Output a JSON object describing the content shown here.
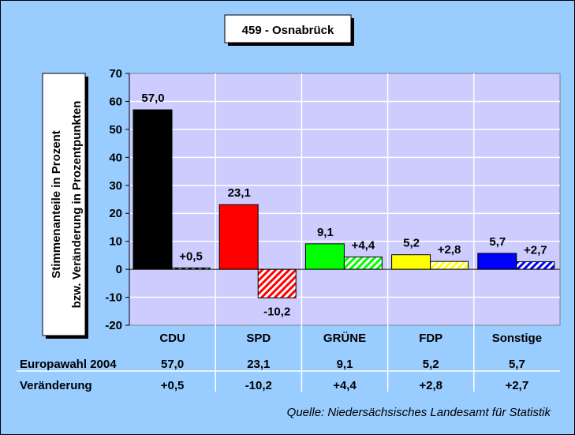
{
  "chart_data": {
    "type": "bar",
    "title": "459 - Osnabrück",
    "ylabel_lines": [
      "Stimmenanteile in Prozent",
      "bzw. Veränderung in Prozentpunkten"
    ],
    "ylim": [
      -20,
      70
    ],
    "yticks": [
      -20,
      -10,
      0,
      10,
      20,
      30,
      40,
      50,
      60,
      70
    ],
    "grid": true,
    "categories": [
      "CDU",
      "SPD",
      "GRÜNE",
      "FDP",
      "Sonstige"
    ],
    "colors": [
      "#000000",
      "#ff0000",
      "#00ff00",
      "#ffff00",
      "#0000ff"
    ],
    "series": [
      {
        "name": "Europawahl 2004",
        "values": [
          57.0,
          23.1,
          9.1,
          5.2,
          5.7
        ],
        "labels": [
          "57,0",
          "23,1",
          "9,1",
          "5,2",
          "5,7"
        ],
        "fill": "solid"
      },
      {
        "name": "Veränderung",
        "values": [
          0.5,
          -10.2,
          4.4,
          2.8,
          2.7
        ],
        "labels": [
          "+0,5",
          "-10,2",
          "+4,4",
          "+2,8",
          "+2,7"
        ],
        "fill": "hatched"
      }
    ],
    "plot_background": "#ccccff",
    "page_background": "#99ccff",
    "source": "Quelle: Niedersächsisches Landesamt für Statistik"
  }
}
